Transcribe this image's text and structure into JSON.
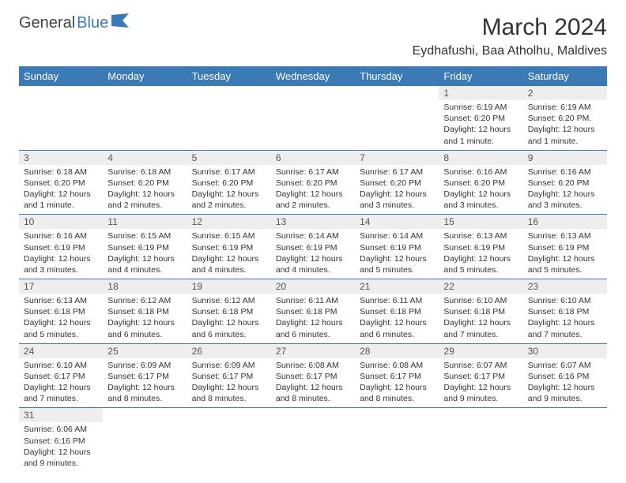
{
  "logo": {
    "text1": "General",
    "text2": "Blue",
    "icon_color": "#3b7ab5"
  },
  "title": "March 2024",
  "location": "Eydhafushi, Baa Atholhu, Maldives",
  "header_bg": "#3b7ab5",
  "columns": [
    "Sunday",
    "Monday",
    "Tuesday",
    "Wednesday",
    "Thursday",
    "Friday",
    "Saturday"
  ],
  "weeks": [
    [
      null,
      null,
      null,
      null,
      null,
      {
        "n": "1",
        "sunrise": "6:19 AM",
        "sunset": "6:20 PM",
        "daylight": "12 hours and 1 minute."
      },
      {
        "n": "2",
        "sunrise": "6:19 AM",
        "sunset": "6:20 PM.",
        "daylight": "12 hours and 1 minute."
      }
    ],
    [
      {
        "n": "3",
        "sunrise": "6:18 AM",
        "sunset": "6:20 PM",
        "daylight": "12 hours and 1 minute."
      },
      {
        "n": "4",
        "sunrise": "6:18 AM",
        "sunset": "6:20 PM",
        "daylight": "12 hours and 2 minutes."
      },
      {
        "n": "5",
        "sunrise": "6:17 AM",
        "sunset": "6:20 PM",
        "daylight": "12 hours and 2 minutes."
      },
      {
        "n": "6",
        "sunrise": "6:17 AM",
        "sunset": "6:20 PM",
        "daylight": "12 hours and 2 minutes."
      },
      {
        "n": "7",
        "sunrise": "6:17 AM",
        "sunset": "6:20 PM",
        "daylight": "12 hours and 3 minutes."
      },
      {
        "n": "8",
        "sunrise": "6:16 AM",
        "sunset": "6:20 PM",
        "daylight": "12 hours and 3 minutes."
      },
      {
        "n": "9",
        "sunrise": "6:16 AM",
        "sunset": "6:20 PM",
        "daylight": "12 hours and 3 minutes."
      }
    ],
    [
      {
        "n": "10",
        "sunrise": "6:16 AM",
        "sunset": "6:19 PM",
        "daylight": "12 hours and 3 minutes."
      },
      {
        "n": "11",
        "sunrise": "6:15 AM",
        "sunset": "6:19 PM",
        "daylight": "12 hours and 4 minutes."
      },
      {
        "n": "12",
        "sunrise": "6:15 AM",
        "sunset": "6:19 PM",
        "daylight": "12 hours and 4 minutes."
      },
      {
        "n": "13",
        "sunrise": "6:14 AM",
        "sunset": "6:19 PM",
        "daylight": "12 hours and 4 minutes."
      },
      {
        "n": "14",
        "sunrise": "6:14 AM",
        "sunset": "6:19 PM",
        "daylight": "12 hours and 5 minutes."
      },
      {
        "n": "15",
        "sunrise": "6:13 AM",
        "sunset": "6:19 PM",
        "daylight": "12 hours and 5 minutes."
      },
      {
        "n": "16",
        "sunrise": "6:13 AM",
        "sunset": "6:19 PM",
        "daylight": "12 hours and 5 minutes."
      }
    ],
    [
      {
        "n": "17",
        "sunrise": "6:13 AM",
        "sunset": "6:18 PM",
        "daylight": "12 hours and 5 minutes."
      },
      {
        "n": "18",
        "sunrise": "6:12 AM",
        "sunset": "6:18 PM",
        "daylight": "12 hours and 6 minutes."
      },
      {
        "n": "19",
        "sunrise": "6:12 AM",
        "sunset": "6:18 PM",
        "daylight": "12 hours and 6 minutes."
      },
      {
        "n": "20",
        "sunrise": "6:11 AM",
        "sunset": "6:18 PM",
        "daylight": "12 hours and 6 minutes."
      },
      {
        "n": "21",
        "sunrise": "6:11 AM",
        "sunset": "6:18 PM",
        "daylight": "12 hours and 6 minutes."
      },
      {
        "n": "22",
        "sunrise": "6:10 AM",
        "sunset": "6:18 PM",
        "daylight": "12 hours and 7 minutes."
      },
      {
        "n": "23",
        "sunrise": "6:10 AM",
        "sunset": "6:18 PM",
        "daylight": "12 hours and 7 minutes."
      }
    ],
    [
      {
        "n": "24",
        "sunrise": "6:10 AM",
        "sunset": "6:17 PM",
        "daylight": "12 hours and 7 minutes."
      },
      {
        "n": "25",
        "sunrise": "6:09 AM",
        "sunset": "6:17 PM",
        "daylight": "12 hours and 8 minutes."
      },
      {
        "n": "26",
        "sunrise": "6:09 AM",
        "sunset": "6:17 PM",
        "daylight": "12 hours and 8 minutes."
      },
      {
        "n": "27",
        "sunrise": "6:08 AM",
        "sunset": "6:17 PM",
        "daylight": "12 hours and 8 minutes."
      },
      {
        "n": "28",
        "sunrise": "6:08 AM",
        "sunset": "6:17 PM",
        "daylight": "12 hours and 8 minutes."
      },
      {
        "n": "29",
        "sunrise": "6:07 AM",
        "sunset": "6:17 PM",
        "daylight": "12 hours and 9 minutes."
      },
      {
        "n": "30",
        "sunrise": "6:07 AM",
        "sunset": "6:16 PM",
        "daylight": "12 hours and 9 minutes."
      }
    ],
    [
      {
        "n": "31",
        "sunrise": "6:06 AM",
        "sunset": "6:16 PM",
        "daylight": "12 hours and 9 minutes."
      },
      null,
      null,
      null,
      null,
      null,
      null
    ]
  ],
  "labels": {
    "sunrise": "Sunrise:",
    "sunset": "Sunset:",
    "daylight": "Daylight:"
  }
}
